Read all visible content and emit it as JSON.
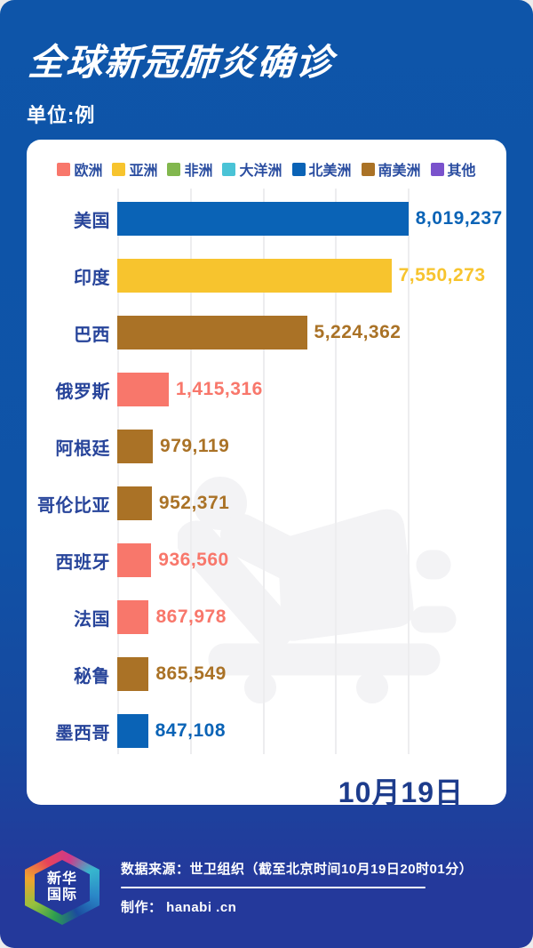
{
  "header": {
    "title": "全球新冠肺炎确诊",
    "unit": "单位:例"
  },
  "region_colors": {
    "europe": "#f8776b",
    "asia": "#f7c42e",
    "africa": "#82b74e",
    "oceania": "#4ac3d6",
    "north_america": "#0a63b6",
    "south_america": "#aa7226",
    "other": "#7a52cc"
  },
  "legend": [
    {
      "label": "欧洲",
      "region": "europe"
    },
    {
      "label": "亚洲",
      "region": "asia"
    },
    {
      "label": "非洲",
      "region": "africa"
    },
    {
      "label": "大洋洲",
      "region": "oceania"
    },
    {
      "label": "北美洲",
      "region": "north_america"
    },
    {
      "label": "南美洲",
      "region": "south_america"
    },
    {
      "label": "其他",
      "region": "other"
    }
  ],
  "chart_data": {
    "type": "bar",
    "orientation": "horizontal",
    "title": "全球新冠肺炎确诊",
    "unit": "例",
    "xlim": [
      0,
      8000000
    ],
    "gridlines": [
      0,
      2000000,
      4000000,
      6000000,
      8000000
    ],
    "grid": true,
    "legend_position": "top",
    "categories": [
      "美国",
      "印度",
      "巴西",
      "俄罗斯",
      "阿根廷",
      "哥伦比亚",
      "西班牙",
      "法国",
      "秘鲁",
      "墨西哥"
    ],
    "values": [
      8019237,
      7550273,
      5224362,
      1415316,
      979119,
      952371,
      936560,
      867978,
      865549,
      847108
    ],
    "value_labels": [
      "8,019,237",
      "7,550,273",
      "5,224,362",
      "1,415,316",
      "979,119",
      "952,371",
      "936,560",
      "867,978",
      "865,549",
      "847,108"
    ],
    "regions": [
      "north_america",
      "asia",
      "south_america",
      "europe",
      "south_america",
      "south_america",
      "europe",
      "europe",
      "south_america",
      "north_america"
    ],
    "date_annotation": "10月19日"
  },
  "watermark": {
    "icon": "patient-on-hospital-bed-icon",
    "color": "#f3f3f5"
  },
  "footer": {
    "logo_line1": "新华",
    "logo_line2": "国际",
    "source": "数据来源：世卫组织（截至北京时间10月19日20时01分）",
    "credit": "制作： hanabi .cn"
  }
}
